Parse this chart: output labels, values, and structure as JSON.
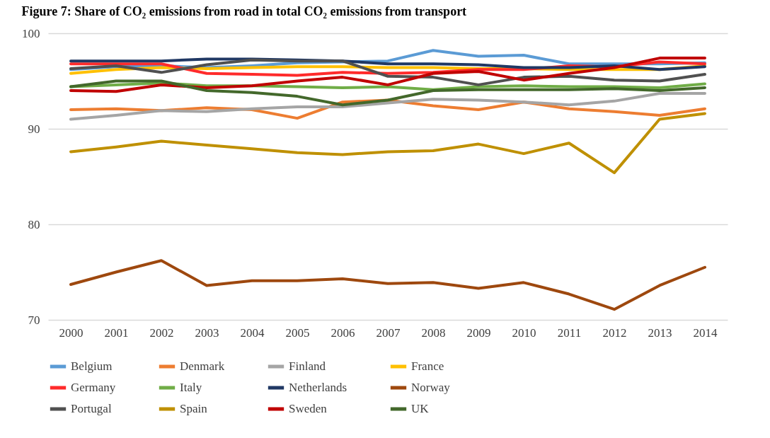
{
  "chart_data": {
    "type": "line",
    "title": "Figure 7: Share of CO₂ emissions from road in total CO₂ emissions from transport",
    "categories": [
      "2000",
      "2001",
      "2002",
      "2003",
      "2004",
      "2005",
      "2006",
      "2007",
      "2008",
      "2009",
      "2010",
      "2011",
      "2012",
      "2013",
      "2014"
    ],
    "ylim": [
      70,
      100
    ],
    "yticks": [
      70,
      80,
      90,
      100
    ],
    "grid": "y",
    "legend": "bottom",
    "marker": "none",
    "line_style": "solid",
    "series": [
      {
        "name": "Belgium",
        "color": "#5b9bd5",
        "values": [
          96.2,
          96.5,
          96.6,
          96.4,
          96.6,
          96.9,
          97.0,
          97.1,
          98.2,
          97.6,
          97.7,
          96.8,
          96.8,
          96.8,
          96.9
        ]
      },
      {
        "name": "Denmark",
        "color": "#ed7d31",
        "values": [
          92.0,
          92.1,
          91.9,
          92.2,
          92.0,
          91.1,
          92.8,
          93.0,
          92.4,
          92.0,
          92.8,
          92.1,
          91.8,
          91.4,
          92.1
        ]
      },
      {
        "name": "Finland",
        "color": "#a5a5a5",
        "values": [
          91.0,
          91.4,
          91.9,
          91.8,
          92.1,
          92.3,
          92.3,
          92.7,
          93.1,
          93.0,
          92.8,
          92.5,
          92.9,
          93.7,
          93.7
        ]
      },
      {
        "name": "France",
        "color": "#ffc000",
        "values": [
          95.8,
          96.2,
          96.4,
          96.3,
          96.4,
          96.5,
          96.5,
          96.4,
          96.4,
          96.3,
          96.3,
          96.2,
          96.2,
          96.2,
          96.6
        ]
      },
      {
        "name": "Germany",
        "color": "#ff2b2b",
        "values": [
          96.8,
          96.8,
          96.8,
          95.8,
          95.7,
          95.6,
          95.9,
          95.8,
          95.9,
          96.2,
          96.2,
          96.6,
          96.5,
          97.0,
          96.8
        ]
      },
      {
        "name": "Italy",
        "color": "#70ad47",
        "values": [
          94.4,
          94.6,
          94.8,
          94.5,
          94.5,
          94.4,
          94.3,
          94.4,
          94.1,
          94.4,
          94.5,
          94.4,
          94.4,
          94.3,
          94.7
        ]
      },
      {
        "name": "Netherlands",
        "color": "#203864",
        "values": [
          97.1,
          97.1,
          97.1,
          97.3,
          97.3,
          97.2,
          97.1,
          96.8,
          96.8,
          96.7,
          96.4,
          96.4,
          96.6,
          96.2,
          96.5
        ]
      },
      {
        "name": "Norway",
        "color": "#9e480e",
        "values": [
          73.7,
          75.0,
          76.2,
          73.6,
          74.1,
          74.1,
          74.3,
          73.8,
          73.9,
          73.3,
          73.9,
          72.7,
          71.1,
          73.6,
          75.5
        ]
      },
      {
        "name": "Portugal",
        "color": "#505050",
        "values": [
          96.3,
          96.6,
          95.9,
          96.7,
          97.2,
          97.1,
          97.1,
          95.5,
          95.4,
          94.6,
          95.4,
          95.5,
          95.1,
          95.0,
          95.7
        ]
      },
      {
        "name": "Spain",
        "color": "#bf9000",
        "values": [
          87.6,
          88.1,
          88.7,
          88.3,
          87.9,
          87.5,
          87.3,
          87.6,
          87.7,
          88.4,
          87.4,
          88.5,
          85.4,
          91.0,
          91.6
        ]
      },
      {
        "name": "Sweden",
        "color": "#c00000",
        "values": [
          94.0,
          93.9,
          94.6,
          94.3,
          94.5,
          95.0,
          95.4,
          94.6,
          95.8,
          96.0,
          95.1,
          95.8,
          96.4,
          97.4,
          97.4
        ]
      },
      {
        "name": "UK",
        "color": "#43682b",
        "values": [
          94.4,
          95.0,
          95.0,
          94.0,
          93.8,
          93.4,
          92.5,
          93.0,
          94.0,
          94.1,
          94.1,
          94.1,
          94.2,
          94.0,
          94.3
        ]
      }
    ]
  }
}
